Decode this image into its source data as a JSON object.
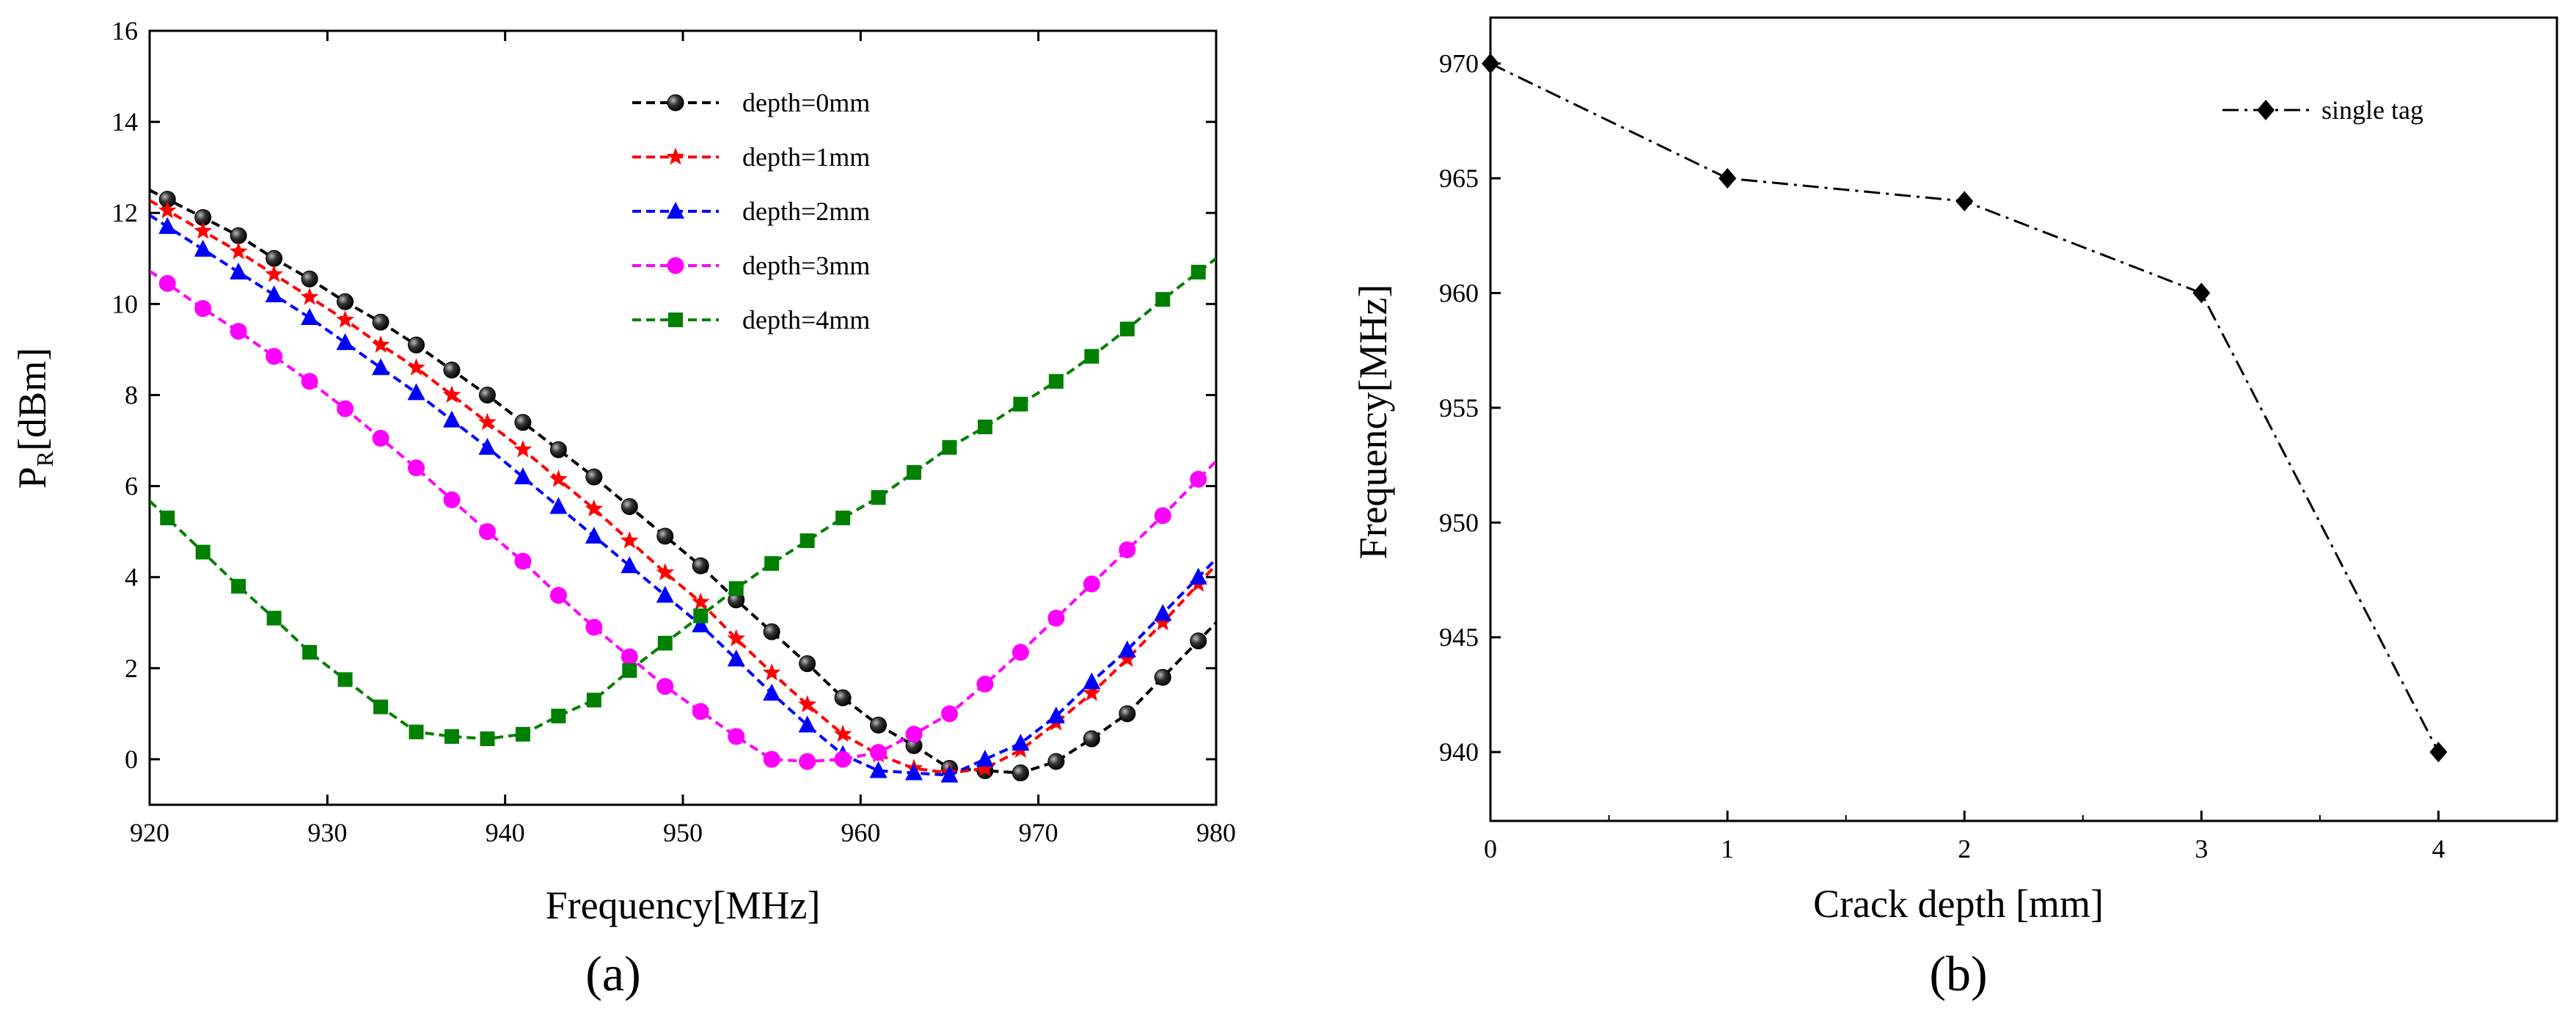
{
  "chart_data": [
    {
      "type": "line",
      "panel_label": "(a)",
      "xlabel": "Frequency[MHz]",
      "ylabel_main": "P",
      "ylabel_sub": "R",
      "ylabel_suffix": "[dBm]",
      "xlim": [
        920,
        980
      ],
      "ylim": [
        -1,
        16
      ],
      "xticks": [
        "920",
        "930",
        "940",
        "950",
        "960",
        "970",
        "980"
      ],
      "yticks": [
        "0",
        "2",
        "4",
        "6",
        "8",
        "10",
        "12",
        "14",
        "16"
      ],
      "x": [
        921,
        923,
        925,
        927,
        929,
        931,
        933,
        935,
        937,
        939,
        941,
        943,
        945,
        947,
        949,
        951,
        953,
        955,
        957,
        959,
        961,
        963,
        965,
        967,
        969,
        971,
        973,
        975,
        977,
        979
      ],
      "series": [
        {
          "name": "depth=0mm",
          "color": "#000000",
          "marker": "circle",
          "values": [
            12.3,
            11.9,
            11.5,
            11.0,
            10.55,
            10.05,
            9.6,
            9.1,
            8.55,
            8.0,
            7.4,
            6.8,
            6.2,
            5.55,
            4.9,
            4.25,
            3.5,
            2.8,
            2.1,
            1.35,
            0.75,
            0.3,
            -0.2,
            -0.25,
            -0.3,
            -0.05,
            0.45,
            1.0,
            1.8,
            2.6
          ]
        },
        {
          "name": "depth=1mm",
          "color": "#ff0000",
          "marker": "star",
          "values": [
            12.05,
            11.6,
            11.15,
            10.65,
            10.15,
            9.65,
            9.1,
            8.6,
            8.0,
            7.4,
            6.8,
            6.15,
            5.5,
            4.8,
            4.1,
            3.45,
            2.65,
            1.9,
            1.2,
            0.55,
            0.1,
            -0.2,
            -0.3,
            -0.2,
            0.2,
            0.8,
            1.45,
            2.2,
            3.0,
            3.85
          ]
        },
        {
          "name": "depth=2mm",
          "color": "#0000ff",
          "marker": "triangle",
          "values": [
            11.7,
            11.2,
            10.7,
            10.2,
            9.7,
            9.15,
            8.6,
            8.05,
            7.45,
            6.85,
            6.2,
            5.55,
            4.9,
            4.25,
            3.6,
            2.95,
            2.2,
            1.45,
            0.75,
            0.1,
            -0.25,
            -0.3,
            -0.35,
            0.0,
            0.35,
            0.95,
            1.7,
            2.4,
            3.2,
            4.0
          ]
        },
        {
          "name": "depth=3mm",
          "color": "#ff00ff",
          "marker": "circle",
          "values": [
            10.45,
            9.9,
            9.4,
            8.85,
            8.3,
            7.7,
            7.05,
            6.4,
            5.7,
            5.0,
            4.35,
            3.6,
            2.9,
            2.25,
            1.6,
            1.05,
            0.5,
            0.0,
            -0.05,
            0.0,
            0.15,
            0.55,
            1.0,
            1.65,
            2.35,
            3.1,
            3.85,
            4.6,
            5.35,
            6.15
          ]
        },
        {
          "name": "depth=4mm",
          "color": "#008000",
          "marker": "square",
          "values": [
            5.3,
            4.55,
            3.8,
            3.1,
            2.35,
            1.75,
            1.15,
            0.6,
            0.5,
            0.45,
            0.55,
            0.95,
            1.3,
            1.95,
            2.55,
            3.15,
            3.75,
            4.3,
            4.8,
            5.3,
            5.75,
            6.3,
            6.85,
            7.3,
            7.8,
            8.3,
            8.85,
            9.45,
            10.1,
            10.7
          ]
        }
      ],
      "legend_position": "top-center"
    },
    {
      "type": "line",
      "panel_label": "(b)",
      "xlabel": "Crack depth [mm]",
      "ylabel": "Frequency[MHz]",
      "xlim": [
        0,
        4.5
      ],
      "ylim": [
        937,
        972
      ],
      "xticks": [
        "0",
        "1",
        "2",
        "3",
        "4"
      ],
      "yticks": [
        "940",
        "945",
        "950",
        "955",
        "960",
        "965",
        "970"
      ],
      "series": [
        {
          "name": "single tag",
          "color": "#000000",
          "marker": "diamond",
          "x": [
            0,
            1,
            2,
            3,
            4
          ],
          "values": [
            970,
            965,
            964,
            960,
            940
          ]
        }
      ],
      "legend_position": "top-right"
    }
  ]
}
